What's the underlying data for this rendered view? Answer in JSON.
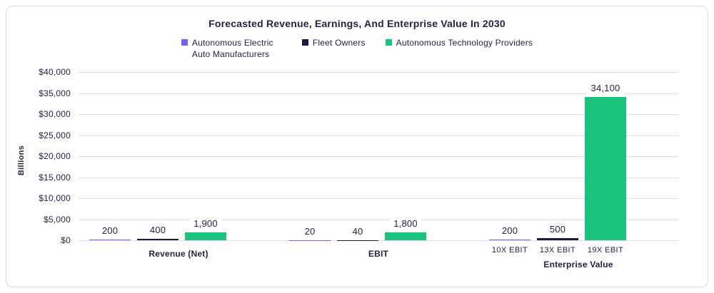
{
  "card": {
    "background": "#ffffff",
    "border_color": "#d9dae4"
  },
  "colors": {
    "text": "#1f2145",
    "grid": "#dcdde8",
    "series_purple": "#7b5cf0",
    "series_navy": "#1a1b3e",
    "series_green": "#1ac47d"
  },
  "chart_data": {
    "type": "bar",
    "title": "Forecasted Revenue, Earnings, And Enterprise Value In 2030",
    "xlabel": "",
    "ylabel": "Billions",
    "ylim": [
      0,
      40000
    ],
    "ytick_step": 5000,
    "yticks": [
      {
        "value": 40000,
        "label": "$40,000"
      },
      {
        "value": 35000,
        "label": "$35,000"
      },
      {
        "value": 30000,
        "label": "$30,000"
      },
      {
        "value": 25000,
        "label": "$25,000"
      },
      {
        "value": 20000,
        "label": "$20,000"
      },
      {
        "value": 15000,
        "label": "$15,000"
      },
      {
        "value": 10000,
        "label": "$10,000"
      },
      {
        "value": 5000,
        "label": "$5,000"
      },
      {
        "value": 0,
        "label": "$0"
      }
    ],
    "grid": true,
    "legend_position": "top",
    "categories": [
      {
        "label": "Revenue (Net)",
        "bar_sublabels": null
      },
      {
        "label": "EBIT",
        "bar_sublabels": null
      },
      {
        "label": "Enterprise Value",
        "bar_sublabels": [
          "10X EBIT",
          "13X EBIT",
          "19X EBIT"
        ]
      }
    ],
    "series": [
      {
        "name": "Autonomous Electric Auto Manufacturers",
        "color": "#7b5cf0",
        "values": [
          200,
          20,
          200
        ],
        "value_labels": [
          "200",
          "20",
          "200"
        ]
      },
      {
        "name": "Fleet Owners",
        "color": "#1a1b3e",
        "values": [
          400,
          40,
          500
        ],
        "value_labels": [
          "400",
          "40",
          "500"
        ]
      },
      {
        "name": "Autonomous Technology Providers",
        "color": "#1ac47d",
        "values": [
          1900,
          1800,
          34100
        ],
        "value_labels": [
          "1,900",
          "1,800",
          "34,100"
        ]
      }
    ]
  }
}
